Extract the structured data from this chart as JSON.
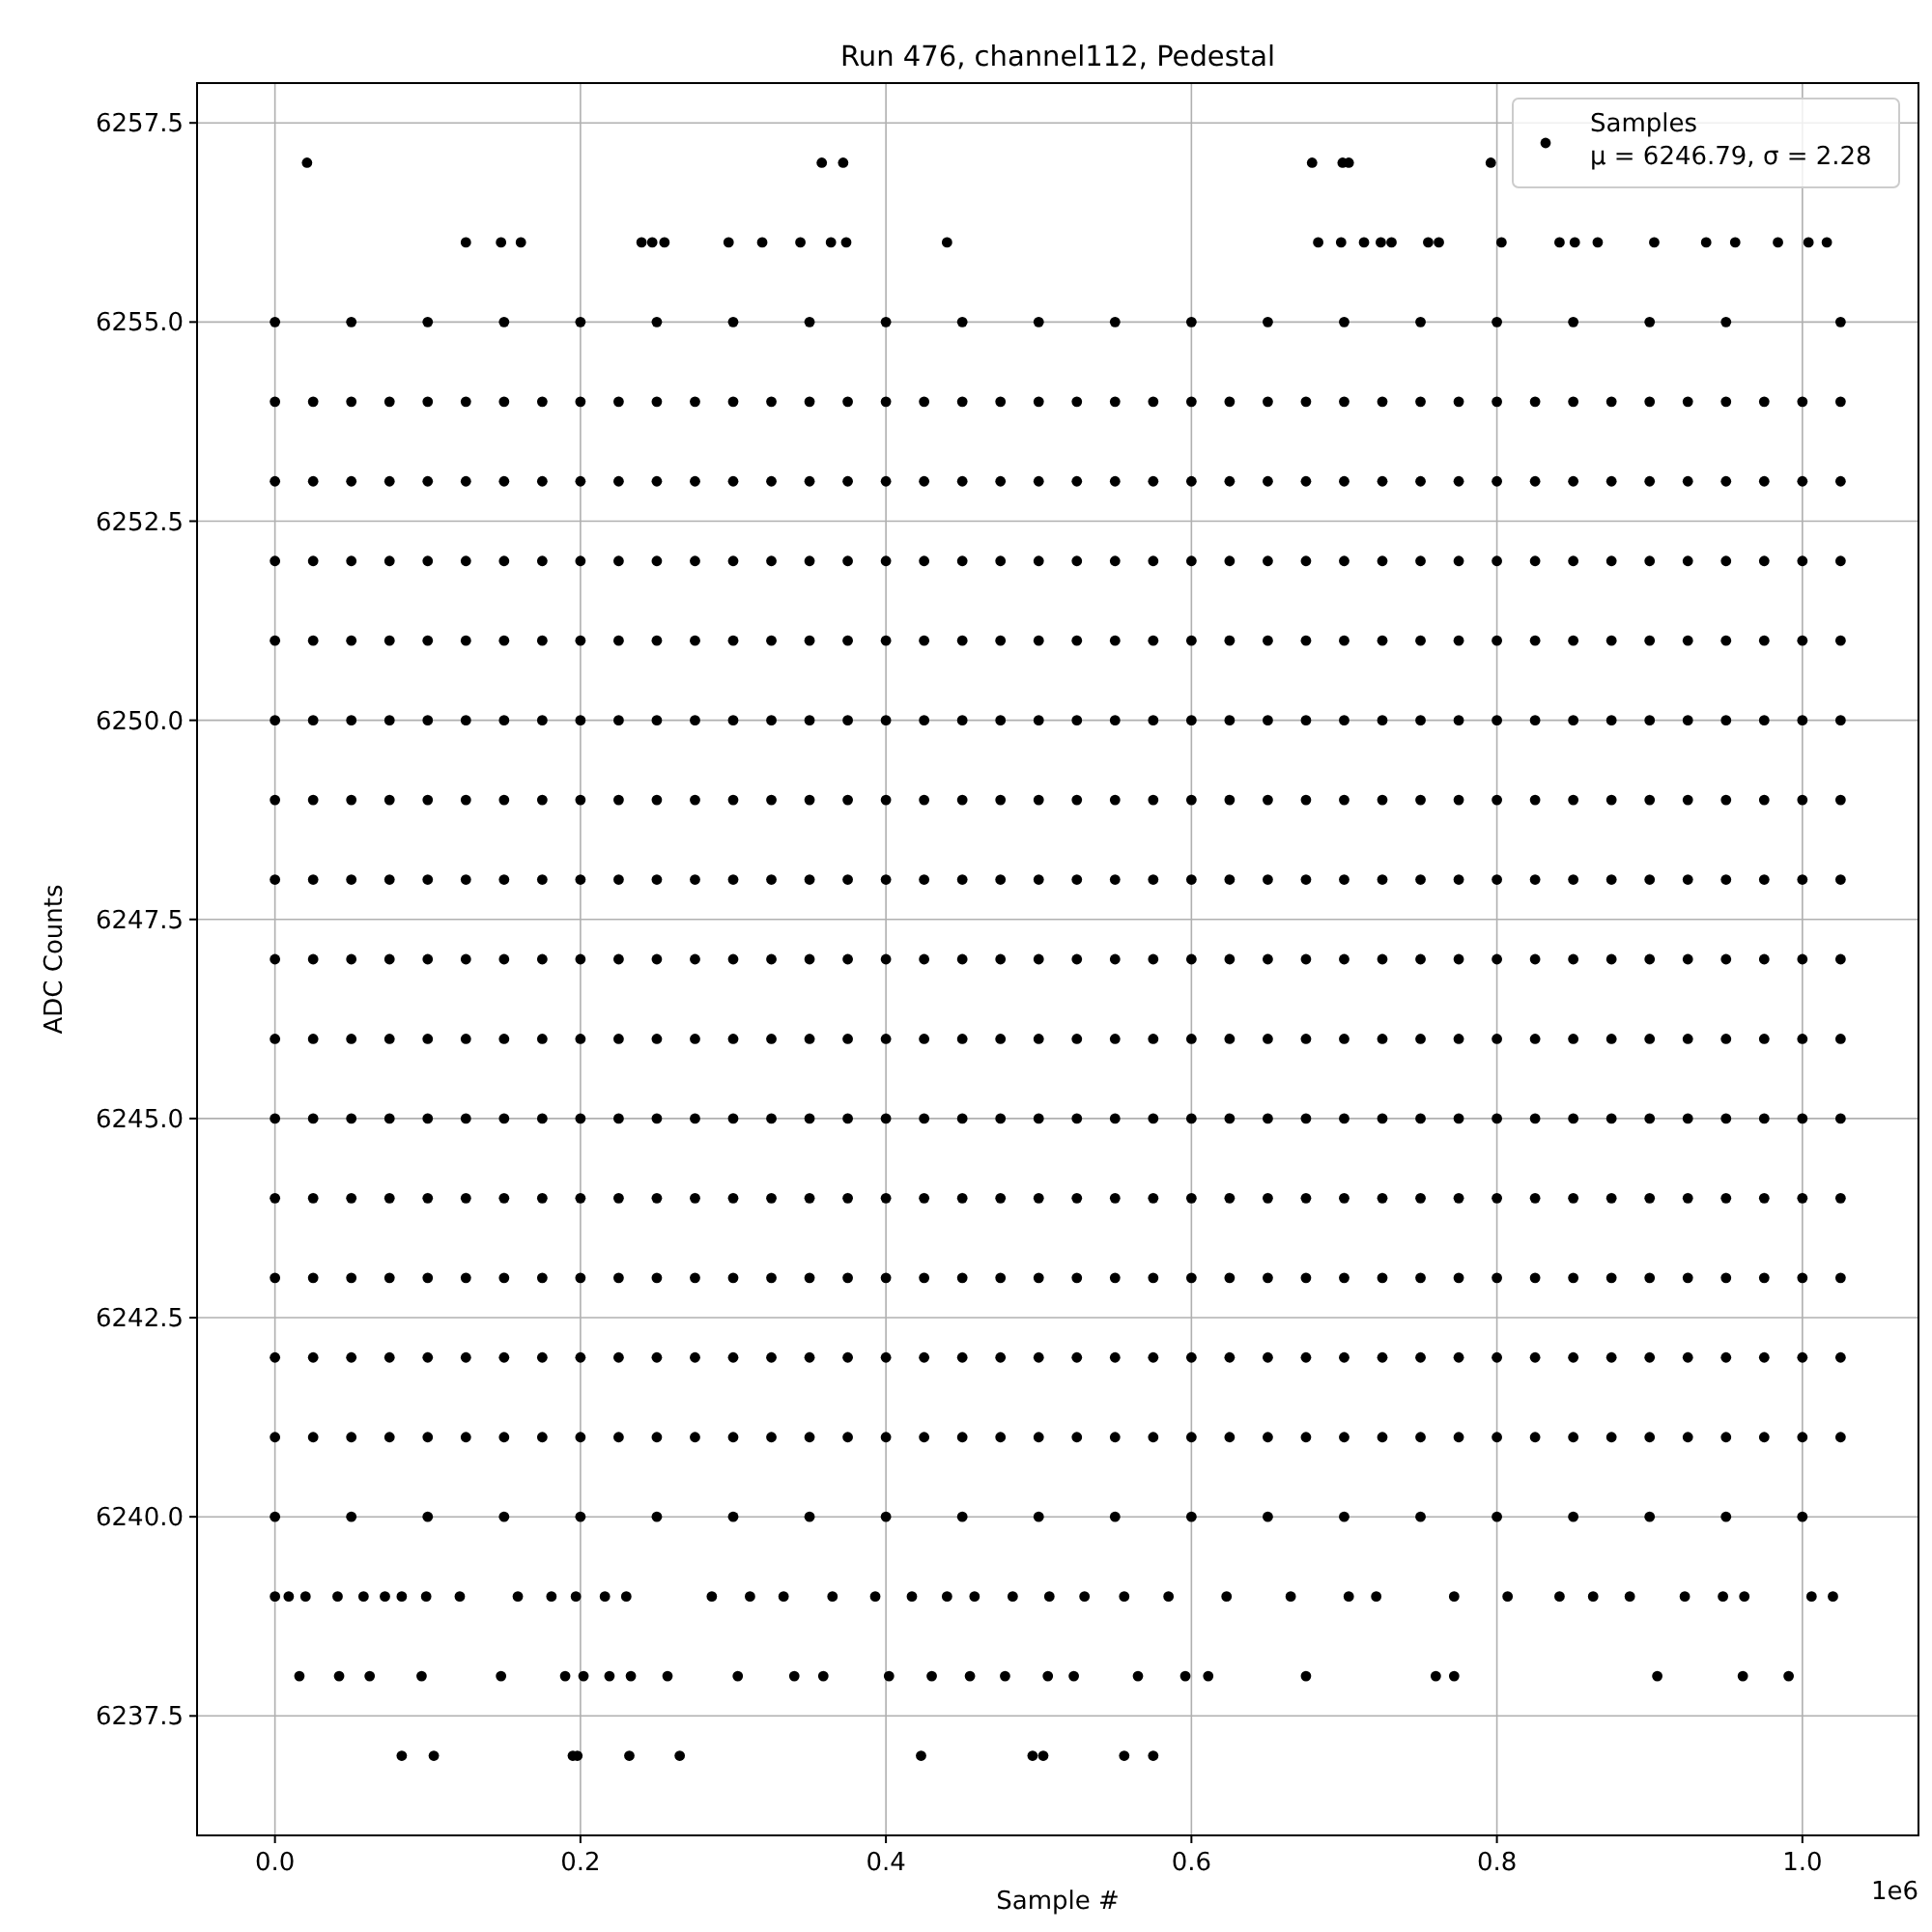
{
  "chart_data": {
    "type": "scatter",
    "title": "Run 476, channel112, Pedestal",
    "xlabel": "Sample #",
    "ylabel": "ADC Counts",
    "annotations": [
      "1e6"
    ],
    "xlim": [
      -0.051,
      1.076
    ],
    "ylim": [
      6236,
      6258
    ],
    "xticks": [
      {
        "value": 0,
        "label": "0.0"
      },
      0.2,
      0.4,
      0.6,
      0.8,
      {
        "value": 1,
        "label": "1.0"
      }
    ],
    "yticks": [
      6237.5,
      {
        "value": 6240,
        "label": "6240.0"
      },
      6242.5,
      {
        "value": 6245,
        "label": "6245.0"
      },
      6247.5,
      {
        "value": 6250,
        "label": "6250.0"
      },
      6252.5,
      {
        "value": 6255,
        "label": "6255.0"
      },
      6257.5
    ],
    "grid": true,
    "legend": "top right",
    "marker": "circle",
    "x": [
      0,
      0.025,
      0.05,
      0.075,
      0.1,
      0.125,
      0.15,
      0.175,
      0.2,
      0.225,
      0.25,
      0.275,
      0.3,
      0.325,
      0.35,
      0.375,
      0.4,
      0.425,
      0.45,
      0.475,
      0.5,
      0.525,
      0.55,
      0.575,
      0.6,
      0.625,
      0.65,
      0.675,
      0.7,
      0.725,
      0.75,
      0.775,
      0.8,
      0.825,
      0.85,
      0.875,
      0.9,
      0.925,
      0.95,
      0.975,
      1,
      1.025
    ],
    "series": [
      {
        "name": "Samples\nμ = 6246.79, σ = 2.28",
        "color": "#000000",
        "values": [
          6246,
          6246,
          6246,
          6246,
          6246,
          6246,
          6246,
          6246,
          6246,
          6246,
          6246,
          6246,
          6246,
          6246,
          6246,
          6246,
          6246,
          6246,
          6246,
          6246,
          6246,
          6246,
          6246,
          6246,
          6246,
          6246,
          6246,
          6246,
          6246,
          6246,
          6246,
          6246,
          6246,
          6246,
          6246,
          6246,
          6246,
          6246,
          6246,
          6246,
          6246,
          6246
        ]
      },
      {
        "color": "#000000",
        "values": [
          6241,
          6241,
          6241,
          6241,
          6241,
          6241,
          6241,
          6241,
          6241,
          6241,
          6241,
          6241,
          6241,
          6241,
          6241,
          6241,
          6241,
          6241,
          6241,
          6241,
          6241,
          6241,
          6241,
          6241,
          6241,
          6241,
          6241,
          6241,
          6241,
          6241,
          6241,
          6241,
          6241,
          6241,
          6241,
          6241,
          6241,
          6241,
          6241,
          6241,
          6241,
          6241
        ]
      },
      {
        "color": "#000000",
        "values": [
          6242,
          6242,
          6242,
          6242,
          6242,
          6242,
          6242,
          6242,
          6242,
          6242,
          6242,
          6242,
          6242,
          6242,
          6242,
          6242,
          6242,
          6242,
          6242,
          6242,
          6242,
          6242,
          6242,
          6242,
          6242,
          6242,
          6242,
          6242,
          6242,
          6242,
          6242,
          6242,
          6242,
          6242,
          6242,
          6242,
          6242,
          6242,
          6242,
          6242,
          6242,
          6242
        ]
      },
      {
        "color": "#000000",
        "values": [
          6243,
          6243,
          6243,
          6243,
          6243,
          6243,
          6243,
          6243,
          6243,
          6243,
          6243,
          6243,
          6243,
          6243,
          6243,
          6243,
          6243,
          6243,
          6243,
          6243,
          6243,
          6243,
          6243,
          6243,
          6243,
          6243,
          6243,
          6243,
          6243,
          6243,
          6243,
          6243,
          6243,
          6243,
          6243,
          6243,
          6243,
          6243,
          6243,
          6243,
          6243,
          6243
        ]
      },
      {
        "color": "#000000",
        "values": [
          6244,
          6244,
          6244,
          6244,
          6244,
          6244,
          6244,
          6244,
          6244,
          6244,
          6244,
          6244,
          6244,
          6244,
          6244,
          6244,
          6244,
          6244,
          6244,
          6244,
          6244,
          6244,
          6244,
          6244,
          6244,
          6244,
          6244,
          6244,
          6244,
          6244,
          6244,
          6244,
          6244,
          6244,
          6244,
          6244,
          6244,
          6244,
          6244,
          6244,
          6244,
          6244
        ]
      },
      {
        "color": "#000000",
        "values": [
          6245,
          6245,
          6245,
          6245,
          6245,
          6245,
          6245,
          6245,
          6245,
          6245,
          6245,
          6245,
          6245,
          6245,
          6245,
          6245,
          6245,
          6245,
          6245,
          6245,
          6245,
          6245,
          6245,
          6245,
          6245,
          6245,
          6245,
          6245,
          6245,
          6245,
          6245,
          6245,
          6245,
          6245,
          6245,
          6245,
          6245,
          6245,
          6245,
          6245,
          6245,
          6245
        ]
      },
      {
        "color": "#000000",
        "values": [
          6247,
          6247,
          6247,
          6247,
          6247,
          6247,
          6247,
          6247,
          6247,
          6247,
          6247,
          6247,
          6247,
          6247,
          6247,
          6247,
          6247,
          6247,
          6247,
          6247,
          6247,
          6247,
          6247,
          6247,
          6247,
          6247,
          6247,
          6247,
          6247,
          6247,
          6247,
          6247,
          6247,
          6247,
          6247,
          6247,
          6247,
          6247,
          6247,
          6247,
          6247,
          6247
        ]
      },
      {
        "color": "#000000",
        "values": [
          6248,
          6248,
          6248,
          6248,
          6248,
          6248,
          6248,
          6248,
          6248,
          6248,
          6248,
          6248,
          6248,
          6248,
          6248,
          6248,
          6248,
          6248,
          6248,
          6248,
          6248,
          6248,
          6248,
          6248,
          6248,
          6248,
          6248,
          6248,
          6248,
          6248,
          6248,
          6248,
          6248,
          6248,
          6248,
          6248,
          6248,
          6248,
          6248,
          6248,
          6248,
          6248
        ]
      },
      {
        "color": "#000000",
        "values": [
          6249,
          6249,
          6249,
          6249,
          6249,
          6249,
          6249,
          6249,
          6249,
          6249,
          6249,
          6249,
          6249,
          6249,
          6249,
          6249,
          6249,
          6249,
          6249,
          6249,
          6249,
          6249,
          6249,
          6249,
          6249,
          6249,
          6249,
          6249,
          6249,
          6249,
          6249,
          6249,
          6249,
          6249,
          6249,
          6249,
          6249,
          6249,
          6249,
          6249,
          6249,
          6249
        ]
      },
      {
        "color": "#000000",
        "values": [
          6250,
          6250,
          6250,
          6250,
          6250,
          6250,
          6250,
          6250,
          6250,
          6250,
          6250,
          6250,
          6250,
          6250,
          6250,
          6250,
          6250,
          6250,
          6250,
          6250,
          6250,
          6250,
          6250,
          6250,
          6250,
          6250,
          6250,
          6250,
          6250,
          6250,
          6250,
          6250,
          6250,
          6250,
          6250,
          6250,
          6250,
          6250,
          6250,
          6250,
          6250,
          6250
        ]
      },
      {
        "color": "#000000",
        "values": [
          6251,
          6251,
          6251,
          6251,
          6251,
          6251,
          6251,
          6251,
          6251,
          6251,
          6251,
          6251,
          6251,
          6251,
          6251,
          6251,
          6251,
          6251,
          6251,
          6251,
          6251,
          6251,
          6251,
          6251,
          6251,
          6251,
          6251,
          6251,
          6251,
          6251,
          6251,
          6251,
          6251,
          6251,
          6251,
          6251,
          6251,
          6251,
          6251,
          6251,
          6251,
          6251
        ]
      },
      {
        "color": "#000000",
        "values": [
          6252,
          6252,
          6252,
          6252,
          6252,
          6252,
          6252,
          6252,
          6252,
          6252,
          6252,
          6252,
          6252,
          6252,
          6252,
          6252,
          6252,
          6252,
          6252,
          6252,
          6252,
          6252,
          6252,
          6252,
          6252,
          6252,
          6252,
          6252,
          6252,
          6252,
          6252,
          6252,
          6252,
          6252,
          6252,
          6252,
          6252,
          6252,
          6252,
          6252,
          6252,
          6252
        ]
      },
      {
        "color": "#000000",
        "values": [
          6253,
          6253,
          6253,
          6253,
          6253,
          6253,
          6253,
          6253,
          6253,
          6253,
          6253,
          6253,
          6253,
          6253,
          6253,
          6253,
          6253,
          6253,
          6253,
          6253,
          6253,
          6253,
          6253,
          6253,
          6253,
          6253,
          6253,
          6253,
          6253,
          6253,
          6253,
          6253,
          6253,
          6253,
          6253,
          6253,
          6253,
          6253,
          6253,
          6253,
          6253,
          6253
        ]
      },
      {
        "color": "#000000",
        "values": [
          6254,
          6254,
          6254,
          6254,
          6254,
          6254,
          6254,
          6254,
          6254,
          6254,
          6254,
          6254,
          6254,
          6254,
          6254,
          6254,
          6254,
          6254,
          6254,
          6254,
          6254,
          6254,
          6254,
          6254,
          6254,
          6254,
          6254,
          6254,
          6254,
          6254,
          6254,
          6254,
          6254,
          6254,
          6254,
          6254,
          6254,
          6254,
          6254,
          6254,
          6254,
          6254
        ]
      },
      {
        "color": "#000000",
        "x": [
          0,
          0.05,
          0.1,
          0.15,
          0.2,
          0.25,
          0.3,
          0.35,
          0.4,
          0.45,
          0.5,
          0.55,
          0.6,
          0.65,
          0.7,
          0.75,
          0.8,
          0.85,
          0.9,
          0.95,
          1
        ],
        "values": [
          6240,
          6240,
          6240,
          6240,
          6240,
          6240,
          6240,
          6240,
          6240,
          6240,
          6240,
          6240,
          6240,
          6240,
          6240,
          6240,
          6240,
          6240,
          6240,
          6240,
          6240
        ]
      },
      {
        "color": "#000000",
        "x": [
          0,
          0.05,
          0.1,
          0.15,
          0.2,
          0.25,
          0.3,
          0.35,
          0.4,
          0.45,
          0.5,
          0.55,
          0.6,
          0.65,
          0.7,
          0.75,
          0.8,
          0.85,
          0.9,
          0.95,
          1.025
        ],
        "values": [
          6255,
          6255,
          6255,
          6255,
          6255,
          6255,
          6255,
          6255,
          6255,
          6255,
          6255,
          6255,
          6255,
          6255,
          6255,
          6255,
          6255,
          6255,
          6255,
          6255,
          6255
        ]
      },
      {
        "color": "#000000",
        "x": [
          0.021,
          0.358,
          0.372,
          0.679,
          0.699,
          0.703,
          0.796
        ],
        "values": [
          6257,
          6257,
          6257,
          6257,
          6257,
          6257,
          6257
        ]
      },
      {
        "color": "#000000",
        "x": [
          0.125,
          0.148,
          0.161,
          0.24,
          0.247,
          0.255,
          0.297,
          0.319,
          0.344,
          0.364,
          0.374,
          0.44,
          0.683,
          0.698,
          0.713,
          0.724,
          0.731,
          0.755,
          0.762,
          0.803,
          0.841,
          0.851,
          0.866,
          0.903,
          0.937,
          0.956,
          0.984,
          1.004,
          1.016
        ],
        "values": [
          6256,
          6256,
          6256,
          6256,
          6256,
          6256,
          6256,
          6256,
          6256,
          6256,
          6256,
          6256,
          6256,
          6256,
          6256,
          6256,
          6256,
          6256,
          6256,
          6256,
          6256,
          6256,
          6256,
          6256,
          6256,
          6256,
          6256,
          6256,
          6256
        ]
      },
      {
        "color": "#000000",
        "x": [
          0,
          0.009,
          0.02,
          0.041,
          0.058,
          0.072,
          0.083,
          0.099,
          0.121,
          0.159,
          0.181,
          0.197,
          0.216,
          0.23,
          0.286,
          0.311,
          0.333,
          0.365,
          0.393,
          0.417,
          0.44,
          0.458,
          0.483,
          0.507,
          0.53,
          0.556,
          0.585,
          0.623,
          0.665,
          0.703,
          0.721,
          0.772,
          0.807,
          0.841,
          0.863,
          0.887,
          0.923,
          0.948,
          0.962,
          1.006,
          1.02
        ],
        "values": [
          6239,
          6239,
          6239,
          6239,
          6239,
          6239,
          6239,
          6239,
          6239,
          6239,
          6239,
          6239,
          6239,
          6239,
          6239,
          6239,
          6239,
          6239,
          6239,
          6239,
          6239,
          6239,
          6239,
          6239,
          6239,
          6239,
          6239,
          6239,
          6239,
          6239,
          6239,
          6239,
          6239,
          6239,
          6239,
          6239,
          6239,
          6239,
          6239,
          6239,
          6239
        ]
      },
      {
        "color": "#000000",
        "x": [
          0.016,
          0.042,
          0.062,
          0.096,
          0.148,
          0.19,
          0.202,
          0.219,
          0.233,
          0.257,
          0.303,
          0.34,
          0.359,
          0.402,
          0.43,
          0.455,
          0.478,
          0.506,
          0.523,
          0.565,
          0.596,
          0.611,
          0.675,
          0.76,
          0.772,
          0.905,
          0.961,
          0.991
        ],
        "values": [
          6238,
          6238,
          6238,
          6238,
          6238,
          6238,
          6238,
          6238,
          6238,
          6238,
          6238,
          6238,
          6238,
          6238,
          6238,
          6238,
          6238,
          6238,
          6238,
          6238,
          6238,
          6238,
          6238,
          6238,
          6238,
          6238,
          6238,
          6238
        ]
      },
      {
        "color": "#000000",
        "x": [
          0.083,
          0.104,
          0.195,
          0.198,
          0.232,
          0.265,
          0.423,
          0.496,
          0.503,
          0.556,
          0.575
        ],
        "values": [
          6237,
          6237,
          6237,
          6237,
          6237,
          6237,
          6237,
          6237,
          6237,
          6237,
          6237
        ]
      }
    ]
  }
}
